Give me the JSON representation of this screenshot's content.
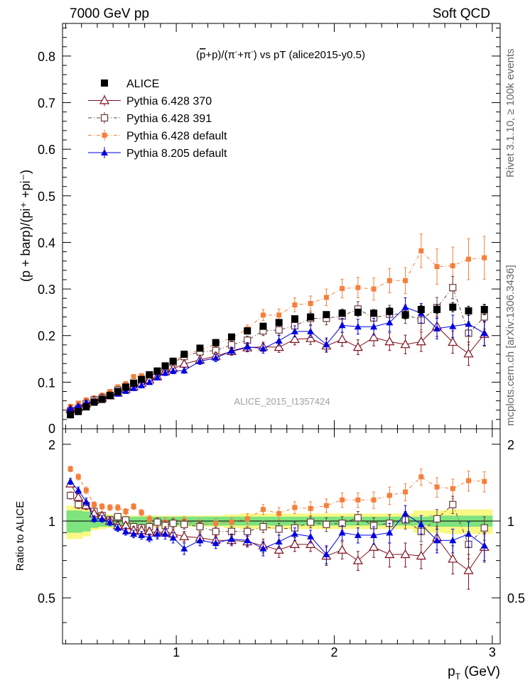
{
  "header": {
    "left": "7000 GeV pp",
    "right": "Soft QCD"
  },
  "side_labels": {
    "rivet": "Rivet 3.1.10, ≥ 100k events",
    "mcplots": "mcplots.cern.ch [arXiv:1306.3436]"
  },
  "colors": {
    "alice": "#000000",
    "p6_370": "#7f0f1c",
    "p6_391": "#6b3c3c",
    "p6_default": "#f57f3b",
    "p8_default": "#0000e0",
    "band_green": "#7fe37f",
    "band_yellow": "#f8f884"
  },
  "chart_data": [
    {
      "type": "line",
      "title_parts": {
        "p": "p",
        "plus": "+p)/(π",
        "pi_plus": "+π",
        "tail": ") vs pT (alice2015-y0.5)"
      },
      "ylabel": "(p + barp)/(pi⁺ +pi⁻)",
      "watermark": "ALICE_2015_I1357424",
      "xlim": [
        0.28,
        3.05
      ],
      "ylim": [
        0,
        0.87
      ],
      "yticks": [
        0.1,
        0.2,
        0.3,
        0.4,
        0.5,
        0.6,
        0.7,
        0.8
      ],
      "ytick_labels": [
        "0.1",
        "0.2",
        "0.3",
        "0.4",
        "0.5",
        "0.6",
        "0.7",
        "0.8"
      ],
      "ytick_zero_label": "0",
      "legend": [
        "ALICE",
        "Pythia 6.428 370",
        "Pythia 6.428 391",
        "Pythia 6.428 default",
        "Pythia 8.205 default"
      ],
      "x": [
        0.33,
        0.38,
        0.43,
        0.48,
        0.53,
        0.58,
        0.63,
        0.68,
        0.73,
        0.78,
        0.83,
        0.88,
        0.93,
        0.98,
        1.05,
        1.15,
        1.25,
        1.35,
        1.45,
        1.55,
        1.65,
        1.75,
        1.85,
        1.95,
        2.05,
        2.15,
        2.25,
        2.35,
        2.45,
        2.55,
        2.65,
        2.75,
        2.85,
        2.95
      ],
      "series": [
        {
          "name": "ALICE",
          "values": [
            0.03,
            0.037,
            0.047,
            0.057,
            0.063,
            0.071,
            0.08,
            0.089,
            0.098,
            0.106,
            0.116,
            0.124,
            0.135,
            0.145,
            0.16,
            0.173,
            0.185,
            0.197,
            0.21,
            0.22,
            0.228,
            0.236,
            0.24,
            0.245,
            0.248,
            0.25,
            0.248,
            0.252,
            0.244,
            0.256,
            0.256,
            0.261,
            0.253,
            0.256
          ],
          "errors": [
            0.002,
            0.002,
            0.002,
            0.002,
            0.002,
            0.002,
            0.002,
            0.002,
            0.002,
            0.002,
            0.003,
            0.003,
            0.003,
            0.003,
            0.003,
            0.004,
            0.004,
            0.004,
            0.005,
            0.005,
            0.005,
            0.006,
            0.006,
            0.006,
            0.007,
            0.007,
            0.007,
            0.008,
            0.008,
            0.009,
            0.009,
            0.01,
            0.01,
            0.011
          ]
        },
        {
          "name": "Pythia 6.428 370",
          "values": [
            0.042,
            0.046,
            0.054,
            0.061,
            0.066,
            0.071,
            0.077,
            0.085,
            0.09,
            0.098,
            0.105,
            0.112,
            0.123,
            0.129,
            0.139,
            0.148,
            0.156,
            0.166,
            0.174,
            0.176,
            0.175,
            0.192,
            0.194,
            0.178,
            0.192,
            0.175,
            0.196,
            0.187,
            0.181,
            0.187,
            0.22,
            0.186,
            0.161,
            0.203
          ],
          "errors": [
            0.002,
            0.002,
            0.002,
            0.002,
            0.002,
            0.002,
            0.003,
            0.003,
            0.003,
            0.004,
            0.004,
            0.005,
            0.006,
            0.006,
            0.006,
            0.007,
            0.008,
            0.008,
            0.009,
            0.01,
            0.011,
            0.012,
            0.013,
            0.014,
            0.015,
            0.016,
            0.018,
            0.019,
            0.02,
            0.021,
            0.022,
            0.024,
            0.025,
            0.026
          ]
        },
        {
          "name": "Pythia 6.428 391",
          "values": [
            0.038,
            0.043,
            0.054,
            0.062,
            0.066,
            0.072,
            0.083,
            0.09,
            0.093,
            0.1,
            0.11,
            0.123,
            0.13,
            0.142,
            0.155,
            0.165,
            0.168,
            0.18,
            0.19,
            0.21,
            0.212,
            0.221,
            0.237,
            0.237,
            0.242,
            0.257,
            0.238,
            0.246,
            0.246,
            0.233,
            0.26,
            0.303,
            0.205,
            0.24
          ],
          "errors": [
            0.002,
            0.002,
            0.002,
            0.002,
            0.002,
            0.002,
            0.003,
            0.003,
            0.003,
            0.004,
            0.004,
            0.005,
            0.006,
            0.006,
            0.006,
            0.007,
            0.008,
            0.008,
            0.009,
            0.01,
            0.011,
            0.012,
            0.013,
            0.014,
            0.015,
            0.016,
            0.018,
            0.019,
            0.02,
            0.021,
            0.022,
            0.024,
            0.025,
            0.026
          ]
        },
        {
          "name": "Pythia 6.428 default",
          "values": [
            0.048,
            0.055,
            0.062,
            0.066,
            0.072,
            0.08,
            0.09,
            0.097,
            0.112,
            0.114,
            0.118,
            0.123,
            0.134,
            0.144,
            0.16,
            0.168,
            0.182,
            0.195,
            0.214,
            0.244,
            0.244,
            0.266,
            0.269,
            0.282,
            0.301,
            0.303,
            0.3,
            0.318,
            0.318,
            0.382,
            0.348,
            0.35,
            0.364,
            0.367
          ],
          "errors": [
            0.002,
            0.002,
            0.002,
            0.002,
            0.002,
            0.002,
            0.003,
            0.003,
            0.003,
            0.004,
            0.004,
            0.005,
            0.006,
            0.006,
            0.006,
            0.007,
            0.008,
            0.008,
            0.009,
            0.012,
            0.013,
            0.015,
            0.016,
            0.018,
            0.02,
            0.022,
            0.024,
            0.026,
            0.028,
            0.036,
            0.038,
            0.04,
            0.044,
            0.046
          ]
        },
        {
          "name": "Pythia 8.205 default",
          "values": [
            0.043,
            0.049,
            0.056,
            0.058,
            0.064,
            0.07,
            0.075,
            0.081,
            0.087,
            0.093,
            0.1,
            0.11,
            0.12,
            0.124,
            0.125,
            0.145,
            0.152,
            0.167,
            0.176,
            0.172,
            0.189,
            0.209,
            0.209,
            0.181,
            0.222,
            0.219,
            0.219,
            0.228,
            0.261,
            0.248,
            0.215,
            0.22,
            0.225,
            0.205
          ],
          "errors": [
            0.002,
            0.002,
            0.002,
            0.002,
            0.002,
            0.002,
            0.003,
            0.003,
            0.003,
            0.004,
            0.004,
            0.005,
            0.006,
            0.006,
            0.006,
            0.007,
            0.008,
            0.008,
            0.009,
            0.01,
            0.011,
            0.012,
            0.013,
            0.014,
            0.015,
            0.016,
            0.018,
            0.019,
            0.02,
            0.021,
            0.022,
            0.024,
            0.025,
            0.026
          ]
        }
      ]
    },
    {
      "type": "line",
      "xlabel_main": "p",
      "xlabel_sub": "T",
      "xlabel_unit": " (GeV)",
      "ylabel": "Ratio to ALICE",
      "xlim": [
        0.28,
        3.05
      ],
      "ylim": [
        0.33,
        2.3
      ],
      "yticks": [
        0.5,
        1,
        2
      ],
      "ytick_labels": [
        "0.5",
        "1",
        "2"
      ],
      "xticks": [
        1,
        2,
        3
      ],
      "xtick_labels": [
        "1",
        "2",
        "3"
      ],
      "band_green_halfwidth": [
        0.1,
        0.1,
        0.09,
        0.06,
        0.05,
        0.05,
        0.04,
        0.04,
        0.04,
        0.04,
        0.04,
        0.04,
        0.04,
        0.04,
        0.04,
        0.04,
        0.04,
        0.04,
        0.04,
        0.04,
        0.04,
        0.04,
        0.04,
        0.04,
        0.04,
        0.04,
        0.04,
        0.04,
        0.04,
        0.04,
        0.05,
        0.05,
        0.05,
        0.05
      ],
      "band_yellow_halfwidth": [
        0.15,
        0.15,
        0.13,
        0.08,
        0.07,
        0.06,
        0.06,
        0.05,
        0.05,
        0.05,
        0.05,
        0.05,
        0.05,
        0.05,
        0.05,
        0.05,
        0.05,
        0.06,
        0.07,
        0.07,
        0.07,
        0.07,
        0.07,
        0.07,
        0.07,
        0.07,
        0.07,
        0.07,
        0.07,
        0.1,
        0.1,
        0.11,
        0.11,
        0.11
      ],
      "series": [
        {
          "name": "Pythia 6.428 370",
          "values": [
            1.4,
            1.24,
            1.15,
            1.07,
            1.05,
            1.0,
            0.96,
            0.96,
            0.92,
            0.92,
            0.91,
            0.9,
            0.91,
            0.89,
            0.87,
            0.86,
            0.84,
            0.84,
            0.83,
            0.8,
            0.77,
            0.81,
            0.81,
            0.73,
            0.77,
            0.7,
            0.79,
            0.74,
            0.74,
            0.73,
            0.86,
            0.71,
            0.64,
            0.79
          ],
          "errors": [
            0.04,
            0.04,
            0.04,
            0.03,
            0.03,
            0.03,
            0.03,
            0.03,
            0.03,
            0.03,
            0.03,
            0.04,
            0.04,
            0.04,
            0.04,
            0.04,
            0.04,
            0.04,
            0.04,
            0.05,
            0.05,
            0.05,
            0.05,
            0.06,
            0.06,
            0.06,
            0.07,
            0.08,
            0.08,
            0.08,
            0.09,
            0.09,
            0.1,
            0.1
          ]
        },
        {
          "name": "Pythia 6.428 391",
          "values": [
            1.26,
            1.16,
            1.15,
            1.09,
            1.05,
            1.01,
            1.04,
            1.01,
            0.95,
            0.94,
            0.95,
            0.99,
            0.96,
            0.98,
            0.97,
            0.95,
            0.91,
            0.91,
            0.91,
            0.95,
            0.93,
            0.94,
            0.99,
            0.97,
            0.98,
            1.03,
            0.96,
            0.98,
            1.01,
            0.91,
            1.02,
            1.16,
            0.81,
            0.94
          ],
          "errors": [
            0.04,
            0.04,
            0.04,
            0.03,
            0.03,
            0.03,
            0.03,
            0.03,
            0.03,
            0.03,
            0.03,
            0.04,
            0.04,
            0.04,
            0.04,
            0.04,
            0.04,
            0.04,
            0.04,
            0.05,
            0.05,
            0.05,
            0.05,
            0.06,
            0.06,
            0.06,
            0.07,
            0.08,
            0.08,
            0.08,
            0.09,
            0.09,
            0.1,
            0.1
          ]
        },
        {
          "name": "Pythia 6.428 default",
          "values": [
            1.6,
            1.49,
            1.32,
            1.16,
            1.14,
            1.13,
            1.13,
            1.09,
            1.14,
            1.08,
            1.02,
            0.99,
            0.99,
            0.99,
            1.0,
            0.97,
            0.98,
            0.99,
            1.02,
            1.11,
            1.07,
            1.13,
            1.12,
            1.15,
            1.21,
            1.21,
            1.21,
            1.26,
            1.3,
            1.49,
            1.36,
            1.34,
            1.44,
            1.43
          ],
          "errors": [
            0.04,
            0.04,
            0.04,
            0.03,
            0.03,
            0.03,
            0.03,
            0.03,
            0.03,
            0.03,
            0.03,
            0.04,
            0.04,
            0.04,
            0.04,
            0.04,
            0.04,
            0.04,
            0.05,
            0.05,
            0.06,
            0.06,
            0.07,
            0.07,
            0.08,
            0.08,
            0.09,
            0.1,
            0.1,
            0.11,
            0.12,
            0.12,
            0.13,
            0.13
          ]
        },
        {
          "name": "Pythia 8.205 default",
          "values": [
            1.43,
            1.32,
            1.19,
            1.02,
            1.02,
            0.99,
            0.94,
            0.91,
            0.89,
            0.88,
            0.86,
            0.89,
            0.89,
            0.86,
            0.78,
            0.84,
            0.82,
            0.85,
            0.84,
            0.78,
            0.83,
            0.89,
            0.87,
            0.74,
            0.9,
            0.88,
            0.88,
            0.9,
            1.07,
            0.97,
            0.84,
            0.84,
            0.89,
            0.8
          ],
          "errors": [
            0.04,
            0.04,
            0.04,
            0.03,
            0.03,
            0.03,
            0.03,
            0.03,
            0.03,
            0.03,
            0.03,
            0.04,
            0.04,
            0.04,
            0.04,
            0.04,
            0.04,
            0.04,
            0.04,
            0.05,
            0.05,
            0.05,
            0.05,
            0.06,
            0.06,
            0.06,
            0.07,
            0.08,
            0.08,
            0.08,
            0.09,
            0.09,
            0.1,
            0.1
          ]
        }
      ]
    }
  ]
}
